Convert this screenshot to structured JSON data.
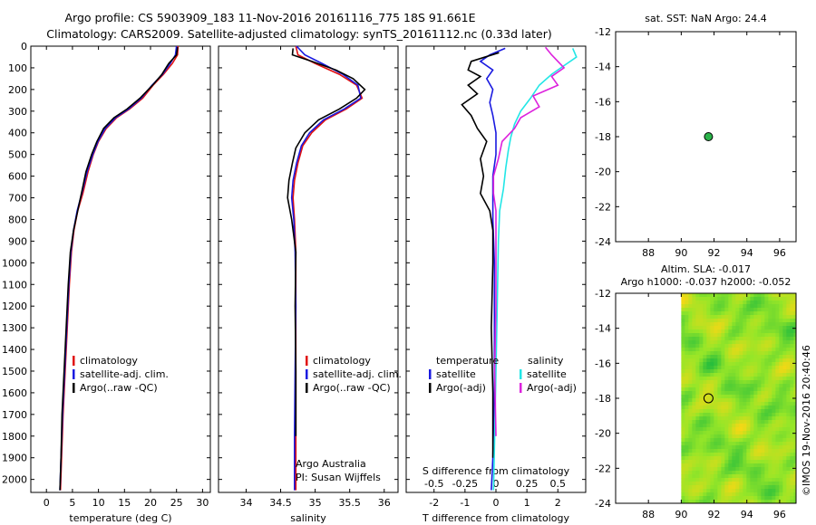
{
  "title_line1": "Argo profile: CS 5903909_183 11-Nov-2016 20161116_775 18S 91.661E",
  "title_line2": "Climatology: CARS2009. Satellite-adjusted climatology: synTS_20161112.nc (0.33d later)",
  "colors": {
    "red": "#e01010",
    "blue": "#1a1ae0",
    "black": "#000000",
    "cyan": "#22e6e6",
    "magenta": "#dd22dd",
    "dot": "#2bb34a"
  },
  "chart_data": [
    {
      "id": "temperature",
      "type": "line",
      "xlabel": "temperature (deg C)",
      "ylabel": "",
      "xlim": [
        -3,
        31.5
      ],
      "ylim": [
        2060,
        0
      ],
      "xticks": [
        0,
        5,
        10,
        15,
        20,
        25,
        30
      ],
      "yticks": [
        0,
        100,
        200,
        300,
        400,
        500,
        600,
        700,
        800,
        900,
        1000,
        1100,
        1200,
        1300,
        1400,
        1500,
        1600,
        1700,
        1800,
        1900,
        2000
      ],
      "legend": [
        "climatology",
        "satellite-adj. clim.",
        "Argo(..raw -QC)"
      ],
      "series": [
        {
          "name": "climatology",
          "color": "red",
          "points": [
            [
              25.3,
              0
            ],
            [
              25.2,
              40
            ],
            [
              24.2,
              80
            ],
            [
              22.5,
              130
            ],
            [
              20.5,
              180
            ],
            [
              18.5,
              240
            ],
            [
              16,
              290
            ],
            [
              13.5,
              330
            ],
            [
              11.5,
              380
            ],
            [
              10,
              440
            ],
            [
              9,
              500
            ],
            [
              8,
              580
            ],
            [
              7,
              680
            ],
            [
              6,
              760
            ],
            [
              5.3,
              850
            ],
            [
              4.8,
              950
            ],
            [
              4.4,
              1100
            ],
            [
              4,
              1300
            ],
            [
              3.6,
              1500
            ],
            [
              3.2,
              1700
            ],
            [
              2.9,
              1900
            ],
            [
              2.7,
              2050
            ]
          ]
        },
        {
          "name": "satellite-adj. clim.",
          "color": "blue",
          "points": [
            [
              25,
              0
            ],
            [
              24.8,
              40
            ],
            [
              23.8,
              80
            ],
            [
              22.3,
              130
            ],
            [
              20.3,
              180
            ],
            [
              18.2,
              240
            ],
            [
              15.8,
              290
            ],
            [
              13.3,
              330
            ],
            [
              11.3,
              380
            ],
            [
              9.9,
              440
            ],
            [
              8.9,
              500
            ],
            [
              7.8,
              580
            ],
            [
              6.8,
              680
            ],
            [
              5.9,
              760
            ],
            [
              5.2,
              850
            ],
            [
              4.7,
              950
            ],
            [
              4.3,
              1100
            ],
            [
              3.9,
              1300
            ],
            [
              3.5,
              1500
            ],
            [
              3.1,
              1700
            ],
            [
              2.8,
              1900
            ],
            [
              2.6,
              2050
            ]
          ]
        },
        {
          "name": "Argo(..raw -QC)",
          "color": "black",
          "points": [
            [
              25.2,
              5
            ],
            [
              25,
              40
            ],
            [
              23.5,
              80
            ],
            [
              22.2,
              130
            ],
            [
              20.4,
              180
            ],
            [
              18,
              240
            ],
            [
              15.5,
              290
            ],
            [
              13,
              330
            ],
            [
              11,
              380
            ],
            [
              9.7,
              440
            ],
            [
              8.7,
              500
            ],
            [
              7.6,
              580
            ],
            [
              6.9,
              660
            ],
            [
              6,
              760
            ],
            [
              5.2,
              850
            ],
            [
              4.6,
              950
            ],
            [
              4.2,
              1100
            ],
            [
              3.8,
              1300
            ],
            [
              3.4,
              1500
            ],
            [
              3,
              1700
            ],
            [
              2.8,
              1900
            ],
            [
              2.6,
              2050
            ]
          ]
        }
      ]
    },
    {
      "id": "salinity",
      "type": "line",
      "xlabel": "salinity",
      "xlim": [
        33.6,
        36.2
      ],
      "ylim": [
        2060,
        0
      ],
      "xticks": [
        34,
        34.5,
        35,
        35.5,
        36
      ],
      "legend": [
        "climatology",
        "satellite-adj. clim.",
        "Argo(..raw -QC)"
      ],
      "annotation1": "Argo Australia",
      "annotation2": "PI: Susan Wijffels",
      "series": [
        {
          "name": "climatology",
          "color": "red",
          "points": [
            [
              34.72,
              0
            ],
            [
              34.75,
              40
            ],
            [
              35,
              80
            ],
            [
              35.35,
              130
            ],
            [
              35.6,
              180
            ],
            [
              35.68,
              240
            ],
            [
              35.45,
              290
            ],
            [
              35.15,
              340
            ],
            [
              34.95,
              400
            ],
            [
              34.82,
              460
            ],
            [
              34.75,
              540
            ],
            [
              34.7,
              620
            ],
            [
              34.68,
              700
            ],
            [
              34.7,
              800
            ],
            [
              34.72,
              950
            ],
            [
              34.72,
              1200
            ],
            [
              34.72,
              1500
            ],
            [
              34.72,
              1800
            ],
            [
              34.72,
              2050
            ]
          ]
        },
        {
          "name": "satellite-adj. clim.",
          "color": "blue",
          "points": [
            [
              34.73,
              0
            ],
            [
              34.85,
              40
            ],
            [
              35.1,
              80
            ],
            [
              35.4,
              130
            ],
            [
              35.62,
              180
            ],
            [
              35.66,
              240
            ],
            [
              35.42,
              290
            ],
            [
              35.12,
              340
            ],
            [
              34.92,
              400
            ],
            [
              34.8,
              460
            ],
            [
              34.73,
              540
            ],
            [
              34.68,
              620
            ],
            [
              34.66,
              700
            ],
            [
              34.69,
              800
            ],
            [
              34.71,
              950
            ],
            [
              34.72,
              1200
            ],
            [
              34.71,
              1500
            ],
            [
              34.7,
              1800
            ],
            [
              34.7,
              2050
            ]
          ]
        },
        {
          "name": "Argo(..raw -QC)",
          "color": "black",
          "points": [
            [
              34.68,
              10
            ],
            [
              34.67,
              40
            ],
            [
              34.95,
              70
            ],
            [
              35.3,
              110
            ],
            [
              35.55,
              150
            ],
            [
              35.72,
              200
            ],
            [
              35.6,
              240
            ],
            [
              35.35,
              290
            ],
            [
              35.05,
              340
            ],
            [
              34.85,
              400
            ],
            [
              34.72,
              470
            ],
            [
              34.67,
              540
            ],
            [
              34.62,
              620
            ],
            [
              34.6,
              700
            ],
            [
              34.66,
              800
            ],
            [
              34.72,
              950
            ],
            [
              34.71,
              1200
            ],
            [
              34.72,
              1500
            ],
            [
              34.72,
              1800
            ]
          ]
        }
      ]
    },
    {
      "id": "differences",
      "type": "line",
      "xlabel": "T difference from climatology",
      "xlabel_top": "S difference from climatology",
      "xlim": [
        -2.9,
        2.9
      ],
      "ylim": [
        2060,
        0
      ],
      "xticks": [
        -2,
        -1,
        0,
        1,
        2
      ],
      "sticks": [
        {
          "v": -0.5,
          "label": "-0.5"
        },
        {
          "v": -0.25,
          "label": "-0.25"
        },
        {
          "v": 0,
          "label": "0"
        },
        {
          "v": 0.25,
          "label": "0.25"
        },
        {
          "v": 0.5,
          "label": "0.5"
        }
      ],
      "s_scale": 4,
      "legend_temperature_title": "temperature",
      "legend_salinity_title": "salinity",
      "legend_temperature": [
        "satellite",
        "Argo(-adj)"
      ],
      "legend_salinity": [
        "satellite",
        "Argo(-adj)"
      ],
      "series": [
        {
          "name": "T satellite",
          "color": "blue",
          "points": [
            [
              0.3,
              10
            ],
            [
              -0.2,
              40
            ],
            [
              -0.5,
              70
            ],
            [
              -0.1,
              110
            ],
            [
              -0.3,
              150
            ],
            [
              -0.1,
              200
            ],
            [
              -0.2,
              260
            ],
            [
              -0.1,
              320
            ],
            [
              0,
              400
            ],
            [
              0,
              500
            ],
            [
              -0.1,
              600
            ],
            [
              -0.1,
              700
            ],
            [
              -0.1,
              800
            ],
            [
              -0.05,
              1000
            ],
            [
              -0.05,
              1300
            ],
            [
              -0.05,
              1600
            ],
            [
              -0.1,
              1900
            ],
            [
              -0.15,
              2050
            ]
          ]
        },
        {
          "name": "T Argo(-adj)",
          "color": "black",
          "points": [
            [
              0.1,
              30
            ],
            [
              -0.8,
              70
            ],
            [
              -0.9,
              110
            ],
            [
              -0.5,
              140
            ],
            [
              -0.9,
              180
            ],
            [
              -0.6,
              220
            ],
            [
              -1.1,
              270
            ],
            [
              -0.8,
              320
            ],
            [
              -0.6,
              380
            ],
            [
              -0.3,
              440
            ],
            [
              -0.5,
              520
            ],
            [
              -0.4,
              600
            ],
            [
              -0.5,
              680
            ],
            [
              -0.2,
              760
            ],
            [
              -0.1,
              850
            ],
            [
              -0.1,
              1000
            ],
            [
              -0.15,
              1300
            ],
            [
              -0.1,
              1600
            ],
            [
              -0.1,
              1900
            ]
          ]
        },
        {
          "name": "S satellite",
          "color": "cyan",
          "points": [
            [
              0.62,
              10
            ],
            [
              0.65,
              50
            ],
            [
              0.55,
              90
            ],
            [
              0.45,
              130
            ],
            [
              0.35,
              180
            ],
            [
              0.28,
              240
            ],
            [
              0.2,
              300
            ],
            [
              0.15,
              360
            ],
            [
              0.12,
              420
            ],
            [
              0.1,
              480
            ],
            [
              0.08,
              560
            ],
            [
              0.06,
              660
            ],
            [
              0.03,
              760
            ],
            [
              0.02,
              900
            ],
            [
              0.01,
              1200
            ],
            [
              0.0,
              1500
            ],
            [
              -0.01,
              1800
            ],
            [
              -0.02,
              2050
            ]
          ]
        },
        {
          "name": "S Argo(-adj)",
          "color": "magenta",
          "points": [
            [
              0.4,
              5
            ],
            [
              0.45,
              40
            ],
            [
              0.5,
              70
            ],
            [
              0.55,
              100
            ],
            [
              0.45,
              140
            ],
            [
              0.5,
              180
            ],
            [
              0.3,
              230
            ],
            [
              0.35,
              280
            ],
            [
              0.2,
              330
            ],
            [
              0.15,
              380
            ],
            [
              0.05,
              440
            ],
            [
              0.02,
              520
            ],
            [
              -0.02,
              600
            ],
            [
              -0.02,
              680
            ],
            [
              0,
              760
            ],
            [
              0.0,
              900
            ],
            [
              0.0,
              1200
            ],
            [
              -0.01,
              1500
            ],
            [
              0,
              1800
            ]
          ]
        }
      ]
    },
    {
      "id": "sst_map",
      "type": "scatter",
      "title": "sat. SST: NaN Argo: 24.4",
      "xlim": [
        86,
        97
      ],
      "ylim": [
        -24,
        -12
      ],
      "xticks": [
        88,
        90,
        92,
        94,
        96
      ],
      "yticks": [
        -12,
        -14,
        -16,
        -18,
        -20,
        -22,
        -24
      ],
      "marker": {
        "x": 91.661,
        "y": -18
      }
    },
    {
      "id": "sla_map",
      "type": "heatmap",
      "title_line1": "Altim. SLA: -0.017",
      "title_line2": "Argo h1000: -0.037 h2000: -0.052",
      "xlim": [
        86,
        97
      ],
      "ylim": [
        -24,
        -12
      ],
      "xticks": [
        88,
        90,
        92,
        94,
        96
      ],
      "yticks": [
        -12,
        -14,
        -16,
        -18,
        -20,
        -22,
        -24
      ],
      "data_xmin": 90,
      "marker": {
        "x": 91.661,
        "y": -18
      }
    }
  ],
  "credit": "©IMOS 19-Nov-2016 20:40:46"
}
